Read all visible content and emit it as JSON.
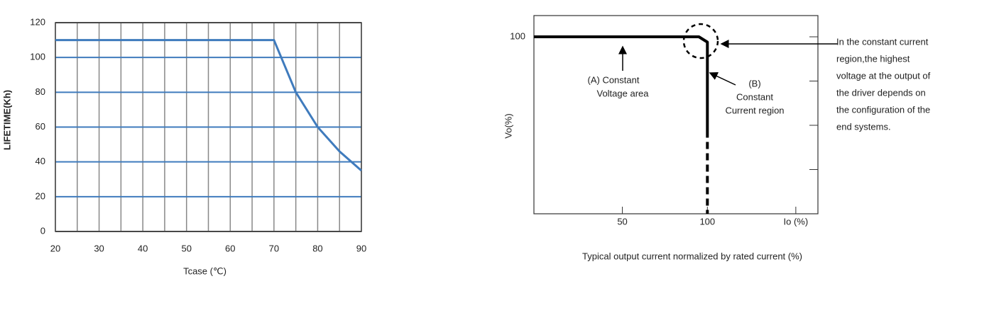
{
  "chart_data": [
    {
      "type": "line",
      "x_label": "Tcase (℃)",
      "y_label": "LIFETIME(Kh)",
      "xlim": [
        20,
        90
      ],
      "ylim": [
        0,
        120
      ],
      "xticks": [
        20,
        30,
        40,
        50,
        60,
        70,
        80,
        90
      ],
      "x_minor_ticks": [
        25,
        35,
        45,
        55,
        65,
        75,
        85
      ],
      "yticks": [
        0,
        20,
        40,
        60,
        80,
        100,
        120
      ],
      "grid": true,
      "series": [
        {
          "color": "#3f7bbd",
          "x": [
            20,
            70,
            75,
            80,
            85,
            90
          ],
          "values": [
            110,
            110,
            80,
            60,
            46,
            35
          ]
        }
      ]
    },
    {
      "type": "line",
      "x_label": "Typical output current normalized by rated current (%)",
      "y_label": "Vo(%)",
      "xlim": [
        -2,
        165
      ],
      "ylim": [
        0,
        112
      ],
      "xticks": [
        50,
        100,
        {
          "value": 152,
          "label": "Io (%)"
        }
      ],
      "yticks": [
        100
      ],
      "right_ticks": [
        25,
        50,
        75,
        100
      ],
      "series": [
        {
          "color": "#000000",
          "style": "solid",
          "x": [
            -2,
            95,
            100,
            100
          ],
          "values": [
            100,
            100,
            97,
            47
          ]
        },
        {
          "color": "#000000",
          "style": "dashed",
          "x": [
            100,
            100
          ],
          "values": [
            47,
            0
          ]
        }
      ],
      "annotations": [
        {
          "text": [
            "(A)  Constant",
            "Voltage area"
          ]
        },
        {
          "text": [
            "(B)",
            "Constant",
            "Current region"
          ]
        }
      ],
      "side_note": [
        "In the constant current",
        "region,the highest",
        "voltage at the output of",
        "the driver depends on",
        "the configuration of the",
        "end systems."
      ]
    }
  ]
}
